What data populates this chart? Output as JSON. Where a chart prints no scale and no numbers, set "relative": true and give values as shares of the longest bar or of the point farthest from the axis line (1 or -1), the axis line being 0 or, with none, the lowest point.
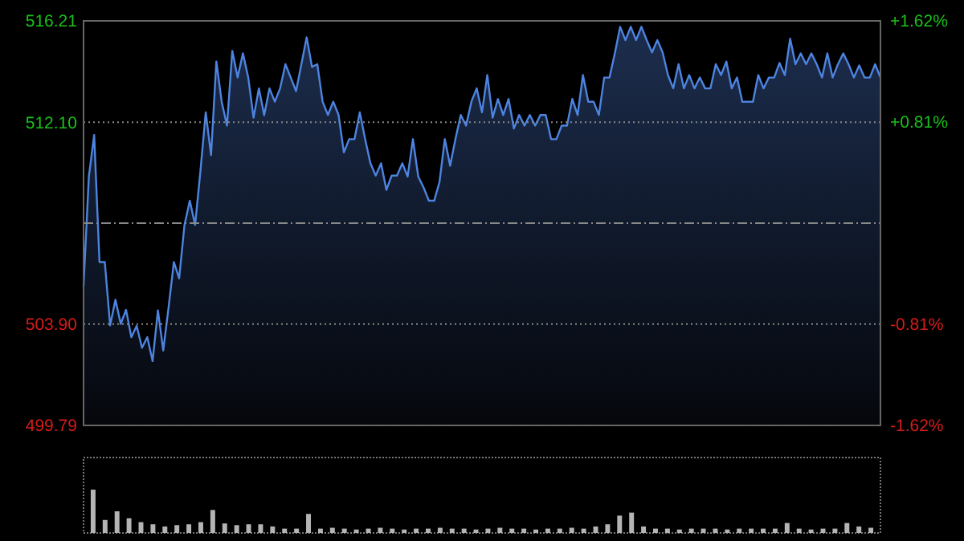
{
  "chart_data": [
    {
      "type": "area",
      "categories": [
        null,
        null,
        null,
        null,
        null,
        null,
        null,
        null,
        null,
        null,
        null,
        null,
        null,
        null,
        null,
        null,
        null,
        null,
        null,
        null,
        null,
        null,
        null,
        null,
        null,
        null,
        null,
        null,
        null,
        null,
        null,
        null,
        null,
        null,
        null,
        null,
        null,
        null,
        null,
        null,
        null,
        null,
        null,
        null,
        null,
        null,
        null,
        null,
        null,
        null,
        null,
        null,
        null,
        null,
        null,
        null,
        null,
        null,
        null,
        null,
        null,
        null,
        null,
        null,
        null,
        null,
        null,
        null,
        null,
        null,
        null,
        null,
        null,
        null,
        null,
        null,
        null,
        null,
        null,
        null,
        null,
        null,
        null,
        null,
        null,
        null,
        null,
        null,
        null,
        null,
        null,
        null,
        null,
        null,
        null,
        null,
        null,
        null,
        null,
        null,
        null,
        null,
        null,
        null,
        null,
        null,
        null,
        null,
        null,
        null,
        null,
        null,
        null,
        null,
        null,
        null,
        null,
        null,
        null,
        null,
        null,
        null,
        null,
        null,
        null,
        null,
        null,
        null,
        null,
        null,
        null,
        null,
        null,
        null,
        null,
        null,
        null,
        null,
        null,
        null,
        null,
        null,
        null,
        null,
        null,
        null,
        null,
        null,
        null,
        null,
        null
      ],
      "series": [
        {
          "color": "#4d84e0",
          "values": [
            505.44,
            509.89,
            511.58,
            506.42,
            506.42,
            503.85,
            504.89,
            503.91,
            504.48,
            503.37,
            503.83,
            502.94,
            503.37,
            502.4,
            504.46,
            502.83,
            504.57,
            506.42,
            505.76,
            507.93,
            508.91,
            507.93,
            510.11,
            512.5,
            510.76,
            514.56,
            512.93,
            511.96,
            514.99,
            513.91,
            514.89,
            513.91,
            512.28,
            513.47,
            512.38,
            513.47,
            512.93,
            513.47,
            514.45,
            513.91,
            513.36,
            514.45,
            515.54,
            514.34,
            514.45,
            512.93,
            512.39,
            512.93,
            512.39,
            510.87,
            511.41,
            511.41,
            512.5,
            511.41,
            510.43,
            509.93,
            510.43,
            509.35,
            509.93,
            509.93,
            510.43,
            509.89,
            511.41,
            509.89,
            509.45,
            508.91,
            508.91,
            509.67,
            511.41,
            510.33,
            511.41,
            512.39,
            511.96,
            512.93,
            513.47,
            512.5,
            514.01,
            512.28,
            513.04,
            512.39,
            513.04,
            511.84,
            512.39,
            511.96,
            512.39,
            511.96,
            512.39,
            512.39,
            511.41,
            511.41,
            511.96,
            511.96,
            513.04,
            512.39,
            514.01,
            512.93,
            512.93,
            512.39,
            513.91,
            513.91,
            514.89,
            515.97,
            515.43,
            515.97,
            515.43,
            515.97,
            515.43,
            514.93,
            515.43,
            514.93,
            514.01,
            513.47,
            514.45,
            513.47,
            514.01,
            513.47,
            513.91,
            513.47,
            513.47,
            514.45,
            514.01,
            514.56,
            513.47,
            513.91,
            512.93,
            512.93,
            512.93,
            514.01,
            513.47,
            513.91,
            513.91,
            514.5,
            514.01,
            515.49,
            514.45,
            514.89,
            514.45,
            514.89,
            514.45,
            513.91,
            514.89,
            513.91,
            514.45,
            514.89,
            514.45,
            513.91,
            514.4,
            513.91,
            513.91,
            514.45,
            513.91
          ]
        }
      ],
      "ylim": [
        499.79,
        516.21
      ],
      "yticks": [
        499.79,
        {
          "value": 503.9,
          "label": "503.90"
        },
        {
          "value": 512.1,
          "label": "512.10"
        },
        516.21
      ],
      "y2lim": [
        -1.62,
        1.62
      ],
      "y2ticks": [
        {
          "value": -1.62,
          "label": "-1.62%"
        },
        {
          "value": -0.81,
          "label": "-0.81%"
        },
        {
          "value": 0,
          "label": null
        },
        {
          "value": 0.81,
          "label": "+0.81%"
        },
        {
          "value": 1.62,
          "label": "+1.62%"
        }
      ],
      "grid": "y"
    },
    {
      "type": "bar",
      "relative": true,
      "color": "#b4b4b4",
      "categories": [
        null,
        null,
        null,
        null,
        null,
        null,
        null,
        null,
        null,
        null,
        null,
        null,
        null,
        null,
        null,
        null,
        null,
        null,
        null,
        null,
        null,
        null,
        null,
        null,
        null,
        null,
        null,
        null,
        null,
        null,
        null,
        null,
        null,
        null,
        null,
        null,
        null,
        null,
        null,
        null,
        null,
        null,
        null,
        null,
        null,
        null,
        null,
        null,
        null,
        null,
        null,
        null,
        null,
        null,
        null,
        null,
        null,
        null,
        null,
        null,
        null,
        null,
        null,
        null,
        null,
        null
      ],
      "values": [
        1,
        0.3,
        0.5,
        0.34,
        0.25,
        0.2,
        0.15,
        0.18,
        0.2,
        0.25,
        0.53,
        0.22,
        0.18,
        0.2,
        0.2,
        0.15,
        0.1,
        0.1,
        0.44,
        0.1,
        0.12,
        0.1,
        0.08,
        0.1,
        0.12,
        0.1,
        0.08,
        0.1,
        0.1,
        0.12,
        0.1,
        0.1,
        0.08,
        0.1,
        0.12,
        0.1,
        0.1,
        0.08,
        0.1,
        0.1,
        0.12,
        0.1,
        0.15,
        0.2,
        0.4,
        0.47,
        0.15,
        0.1,
        0.1,
        0.08,
        0.1,
        0.1,
        0.1,
        0.08,
        0.1,
        0.1,
        0.1,
        0.1,
        0.23,
        0.1,
        0.08,
        0.1,
        0.1,
        0.23,
        0.15,
        0.12
      ]
    }
  ]
}
